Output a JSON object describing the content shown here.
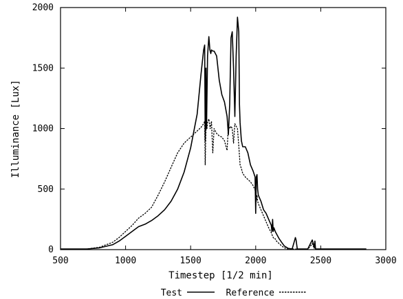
{
  "chart_data": {
    "type": "line",
    "xlabel": "Timestep [1/2 min]",
    "ylabel": "Illuminance [Lux]",
    "xlim": [
      500,
      3000
    ],
    "ylim": [
      0,
      2000
    ],
    "xticks": [
      500,
      1000,
      1500,
      2000,
      2500,
      3000
    ],
    "yticks": [
      0,
      500,
      1000,
      1500,
      2000
    ],
    "xtick_labels": [
      "500",
      "1000",
      "1500",
      "2000",
      "2500",
      "3000"
    ],
    "ytick_labels": [
      "0",
      "500",
      "1000",
      "1500",
      "2000"
    ],
    "grid": false,
    "legend_position": "bottom-center",
    "series": [
      {
        "name": "Test",
        "style": "solid",
        "color": "#000000",
        "x": [
          500,
          700,
          800,
          900,
          950,
          1000,
          1050,
          1100,
          1150,
          1200,
          1250,
          1300,
          1350,
          1400,
          1450,
          1500,
          1550,
          1580,
          1600,
          1608,
          1612,
          1618,
          1622,
          1630,
          1640,
          1648,
          1655,
          1660,
          1670,
          1680,
          1700,
          1720,
          1740,
          1760,
          1780,
          1790,
          1800,
          1810,
          1820,
          1830,
          1840,
          1850,
          1860,
          1870,
          1875,
          1880,
          1890,
          1900,
          1920,
          1940,
          1960,
          1980,
          1995,
          2000,
          2005,
          2010,
          2015,
          2020,
          2040,
          2060,
          2080,
          2100,
          2120,
          2125,
          2130,
          2135,
          2140,
          2150,
          2160,
          2180,
          2200,
          2220,
          2250,
          2280,
          2300,
          2305,
          2310,
          2320,
          2325,
          2330,
          2340,
          2400,
          2430,
          2435,
          2450,
          2455,
          2460,
          2500,
          2600,
          2700,
          2800,
          2850
        ],
        "y": [
          5,
          5,
          15,
          40,
          70,
          110,
          150,
          190,
          210,
          240,
          280,
          330,
          400,
          500,
          640,
          840,
          1120,
          1450,
          1650,
          1690,
          900,
          1500,
          1000,
          1600,
          1760,
          1650,
          1620,
          1650,
          1640,
          1640,
          1600,
          1400,
          1280,
          1220,
          1100,
          950,
          1200,
          1750,
          1800,
          1500,
          1100,
          1600,
          1920,
          1800,
          1200,
          1050,
          900,
          850,
          850,
          800,
          700,
          650,
          600,
          300,
          600,
          620,
          500,
          450,
          400,
          330,
          300,
          250,
          200,
          150,
          250,
          150,
          180,
          150,
          130,
          90,
          60,
          30,
          10,
          5,
          80,
          100,
          80,
          5,
          5,
          5,
          5,
          5,
          70,
          80,
          20,
          70,
          5,
          5,
          5,
          5,
          5,
          5
        ]
      },
      {
        "name": "Reference",
        "style": "dashed",
        "color": "#000000",
        "x": [
          500,
          700,
          800,
          900,
          950,
          1000,
          1050,
          1100,
          1150,
          1200,
          1250,
          1300,
          1350,
          1400,
          1450,
          1500,
          1550,
          1580,
          1600,
          1608,
          1612,
          1616,
          1620,
          1625,
          1630,
          1640,
          1650,
          1660,
          1670,
          1680,
          1690,
          1700,
          1720,
          1740,
          1760,
          1780,
          1790,
          1800,
          1810,
          1820,
          1830,
          1840,
          1850,
          1860,
          1870,
          1880,
          1890,
          1900,
          1920,
          1940,
          1960,
          1980,
          2000,
          2005,
          2010,
          2015,
          2020,
          2040,
          2060,
          2080,
          2100,
          2120,
          2130,
          2140,
          2150,
          2160,
          2180,
          2200,
          2220,
          2250,
          2280,
          2300,
          2320,
          2330,
          2340,
          2400,
          2430,
          2435,
          2450,
          2455,
          2460,
          2500,
          2600,
          2700,
          2800,
          2850
        ],
        "y": [
          5,
          5,
          20,
          60,
          100,
          150,
          200,
          260,
          300,
          350,
          450,
          560,
          680,
          800,
          880,
          930,
          980,
          1010,
          1040,
          1060,
          700,
          900,
          1060,
          1000,
          1050,
          1080,
          1000,
          1060,
          800,
          1000,
          980,
          960,
          940,
          930,
          900,
          820,
          1020,
          1000,
          1020,
          1000,
          880,
          1040,
          1020,
          1000,
          860,
          700,
          670,
          630,
          600,
          580,
          560,
          530,
          480,
          400,
          450,
          400,
          380,
          330,
          280,
          230,
          180,
          140,
          110,
          90,
          90,
          70,
          50,
          30,
          15,
          5,
          5,
          5,
          5,
          5,
          5,
          5,
          40,
          50,
          10,
          40,
          5,
          5,
          5,
          5,
          5,
          5
        ]
      }
    ]
  }
}
